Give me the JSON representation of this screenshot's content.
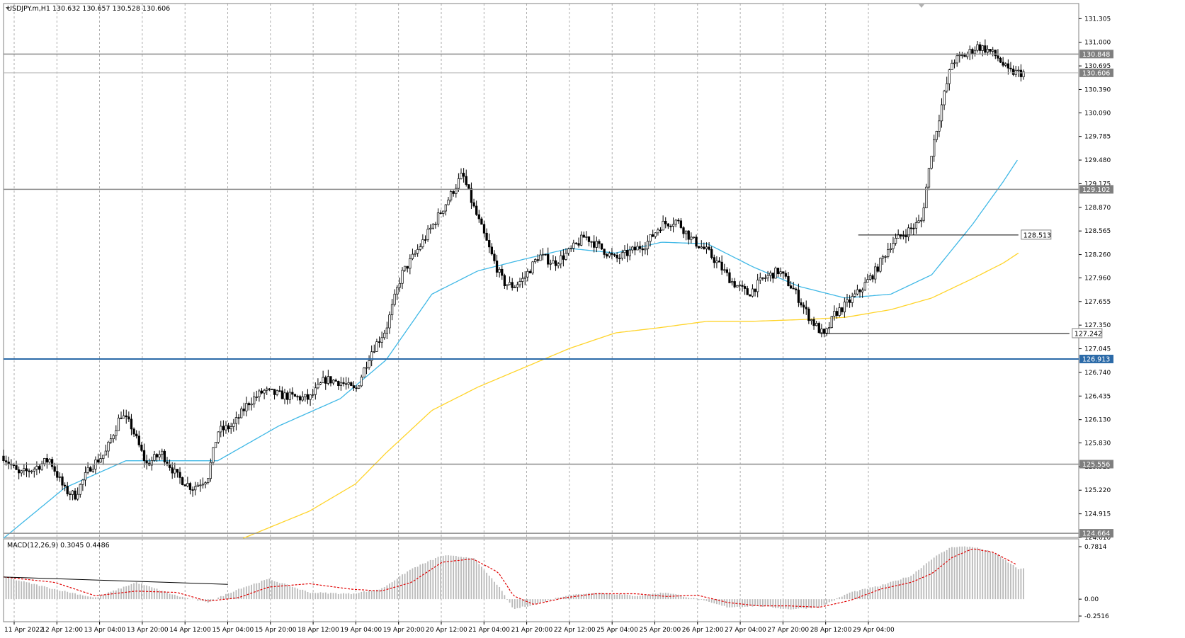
{
  "window": {
    "header_text": "USDJPY.m,H1  130.632 130.657 130.528 130.606",
    "macd_label": "MACD(12,26,9) 0.3045 0.4486"
  },
  "colors": {
    "bull_body": "#ffffff",
    "bear_body": "#000000",
    "candle_edge": "#000000",
    "ma_fast": "#3fb8e6",
    "ma_slow": "#ffd42a",
    "hline_gray": "#8c8c8c",
    "hline_blue": "#2b6aa8",
    "macd_hist": "#b9b9b9",
    "macd_signal": "#e00000",
    "grid": "#9a9a9a"
  },
  "chart_data": {
    "type": "candlestick",
    "symbol": "USDJPY.m",
    "timeframe": "H1",
    "last_ohlc": {
      "open": 130.632,
      "high": 130.657,
      "low": 130.528,
      "close": 130.606
    },
    "price_range": [
      124.61,
      131.5
    ],
    "price_ticks": [
      "131.305",
      "131.000",
      "130.695",
      "130.390",
      "130.090",
      "129.785",
      "129.480",
      "129.175",
      "128.870",
      "128.565",
      "128.260",
      "127.960",
      "127.655",
      "127.350",
      "127.045",
      "126.740",
      "126.435",
      "126.130",
      "125.830",
      "125.525",
      "125.220",
      "124.915",
      "124.610"
    ],
    "time_labels": [
      "11 Apr 2022",
      "12 Apr 12:00",
      "13 Apr 04:00",
      "13 Apr 20:00",
      "14 Apr 12:00",
      "15 Apr 04:00",
      "15 Apr 20:00",
      "18 Apr 12:00",
      "19 Apr 04:00",
      "19 Apr 20:00",
      "20 Apr 12:00",
      "21 Apr 04:00",
      "21 Apr 20:00",
      "22 Apr 12:00",
      "25 Apr 04:00",
      "25 Apr 20:00",
      "26 Apr 12:00",
      "27 Apr 04:00",
      "27 Apr 20:00",
      "28 Apr 12:00",
      "29 Apr 04:00"
    ],
    "horizontal_levels": [
      {
        "price": 130.848,
        "label": "130.848",
        "style": "gray"
      },
      {
        "price": 130.606,
        "label": "130.606",
        "style": "current"
      },
      {
        "price": 129.102,
        "label": "129.102",
        "style": "gray"
      },
      {
        "price": 126.913,
        "label": "126.913",
        "style": "blue"
      },
      {
        "price": 125.556,
        "label": "125.556",
        "style": "gray"
      },
      {
        "price": 124.664,
        "label": "124.664",
        "style": "gray"
      }
    ],
    "annotations": [
      {
        "label": "128.513",
        "price": 128.513,
        "from_bar": 0.838,
        "to_bar": 0.995
      },
      {
        "label": "127.242",
        "price": 127.242,
        "from_bar": 0.8,
        "to_bar": 1.045
      }
    ],
    "price_path": [
      [
        0.0,
        125.66
      ],
      [
        0.015,
        125.42
      ],
      [
        0.03,
        125.5
      ],
      [
        0.045,
        125.62
      ],
      [
        0.06,
        125.22
      ],
      [
        0.07,
        125.15
      ],
      [
        0.085,
        125.52
      ],
      [
        0.1,
        125.7
      ],
      [
        0.115,
        126.2
      ],
      [
        0.125,
        126.05
      ],
      [
        0.14,
        125.55
      ],
      [
        0.155,
        125.7
      ],
      [
        0.17,
        125.4
      ],
      [
        0.185,
        125.25
      ],
      [
        0.2,
        125.38
      ],
      [
        0.21,
        125.98
      ],
      [
        0.225,
        126.05
      ],
      [
        0.24,
        126.35
      ],
      [
        0.255,
        126.5
      ],
      [
        0.27,
        126.45
      ],
      [
        0.285,
        126.42
      ],
      [
        0.3,
        126.4
      ],
      [
        0.315,
        126.65
      ],
      [
        0.33,
        126.62
      ],
      [
        0.345,
        126.5
      ],
      [
        0.36,
        127.0
      ],
      [
        0.375,
        127.3
      ],
      [
        0.39,
        128.0
      ],
      [
        0.405,
        128.3
      ],
      [
        0.42,
        128.62
      ],
      [
        0.435,
        128.95
      ],
      [
        0.45,
        129.3
      ],
      [
        0.46,
        128.9
      ],
      [
        0.47,
        128.55
      ],
      [
        0.48,
        128.2
      ],
      [
        0.49,
        127.9
      ],
      [
        0.5,
        127.85
      ],
      [
        0.51,
        127.95
      ],
      [
        0.525,
        128.25
      ],
      [
        0.54,
        128.15
      ],
      [
        0.555,
        128.3
      ],
      [
        0.57,
        128.5
      ],
      [
        0.585,
        128.35
      ],
      [
        0.6,
        128.2
      ],
      [
        0.615,
        128.3
      ],
      [
        0.63,
        128.4
      ],
      [
        0.645,
        128.65
      ],
      [
        0.66,
        128.7
      ],
      [
        0.675,
        128.45
      ],
      [
        0.69,
        128.3
      ],
      [
        0.7,
        128.15
      ],
      [
        0.715,
        127.9
      ],
      [
        0.73,
        127.75
      ],
      [
        0.745,
        127.95
      ],
      [
        0.76,
        128.05
      ],
      [
        0.775,
        127.8
      ],
      [
        0.79,
        127.45
      ],
      [
        0.805,
        127.2
      ],
      [
        0.815,
        127.5
      ],
      [
        0.825,
        127.6
      ],
      [
        0.84,
        127.8
      ],
      [
        0.855,
        128.05
      ],
      [
        0.87,
        128.4
      ],
      [
        0.885,
        128.55
      ],
      [
        0.9,
        128.7
      ],
      [
        0.91,
        129.6
      ],
      [
        0.92,
        130.2
      ],
      [
        0.93,
        130.75
      ],
      [
        0.945,
        130.85
      ],
      [
        0.955,
        130.95
      ],
      [
        0.965,
        130.9
      ],
      [
        0.975,
        130.8
      ],
      [
        0.985,
        130.62
      ],
      [
        0.995,
        130.606
      ]
    ],
    "ma_fast_path": [
      [
        0.0,
        124.6
      ],
      [
        0.06,
        125.25
      ],
      [
        0.12,
        125.6
      ],
      [
        0.18,
        125.6
      ],
      [
        0.21,
        125.6
      ],
      [
        0.27,
        126.05
      ],
      [
        0.33,
        126.4
      ],
      [
        0.375,
        126.9
      ],
      [
        0.42,
        127.75
      ],
      [
        0.465,
        128.05
      ],
      [
        0.51,
        128.2
      ],
      [
        0.555,
        128.34
      ],
      [
        0.6,
        128.28
      ],
      [
        0.645,
        128.42
      ],
      [
        0.69,
        128.4
      ],
      [
        0.735,
        128.1
      ],
      [
        0.78,
        127.85
      ],
      [
        0.825,
        127.7
      ],
      [
        0.87,
        127.75
      ],
      [
        0.91,
        128.0
      ],
      [
        0.95,
        128.65
      ],
      [
        0.98,
        129.2
      ],
      [
        0.995,
        129.5
      ]
    ],
    "ma_slow_path": [
      [
        0.235,
        124.6
      ],
      [
        0.3,
        124.95
      ],
      [
        0.345,
        125.3
      ],
      [
        0.375,
        125.7
      ],
      [
        0.42,
        126.25
      ],
      [
        0.465,
        126.55
      ],
      [
        0.51,
        126.8
      ],
      [
        0.555,
        127.05
      ],
      [
        0.6,
        127.25
      ],
      [
        0.645,
        127.32
      ],
      [
        0.69,
        127.4
      ],
      [
        0.735,
        127.4
      ],
      [
        0.78,
        127.42
      ],
      [
        0.825,
        127.45
      ],
      [
        0.87,
        127.55
      ],
      [
        0.91,
        127.7
      ],
      [
        0.95,
        127.95
      ],
      [
        0.98,
        128.15
      ],
      [
        0.995,
        128.28
      ]
    ],
    "macd": {
      "range": [
        -0.2516,
        0.7814
      ],
      "tick_labels": [
        "0.7814",
        "0.00",
        "-0.2516"
      ],
      "hist_path": [
        [
          0.0,
          0.33
        ],
        [
          0.05,
          0.15
        ],
        [
          0.09,
          0.02
        ],
        [
          0.13,
          0.25
        ],
        [
          0.17,
          0.05
        ],
        [
          0.2,
          -0.05
        ],
        [
          0.23,
          0.15
        ],
        [
          0.26,
          0.3
        ],
        [
          0.3,
          0.1
        ],
        [
          0.34,
          0.08
        ],
        [
          0.37,
          0.15
        ],
        [
          0.4,
          0.45
        ],
        [
          0.43,
          0.65
        ],
        [
          0.46,
          0.62
        ],
        [
          0.485,
          0.2
        ],
        [
          0.5,
          -0.15
        ],
        [
          0.52,
          -0.08
        ],
        [
          0.55,
          0.05
        ],
        [
          0.58,
          0.1
        ],
        [
          0.62,
          0.05
        ],
        [
          0.65,
          0.1
        ],
        [
          0.68,
          0.0
        ],
        [
          0.71,
          -0.12
        ],
        [
          0.74,
          -0.1
        ],
        [
          0.77,
          -0.15
        ],
        [
          0.8,
          -0.12
        ],
        [
          0.83,
          0.1
        ],
        [
          0.86,
          0.2
        ],
        [
          0.89,
          0.35
        ],
        [
          0.91,
          0.6
        ],
        [
          0.93,
          0.78
        ],
        [
          0.95,
          0.78
        ],
        [
          0.97,
          0.7
        ],
        [
          0.995,
          0.45
        ]
      ],
      "signal_path": [
        [
          0.0,
          0.33
        ],
        [
          0.05,
          0.25
        ],
        [
          0.09,
          0.05
        ],
        [
          0.13,
          0.12
        ],
        [
          0.17,
          0.1
        ],
        [
          0.2,
          -0.03
        ],
        [
          0.23,
          0.02
        ],
        [
          0.26,
          0.18
        ],
        [
          0.3,
          0.23
        ],
        [
          0.34,
          0.15
        ],
        [
          0.37,
          0.12
        ],
        [
          0.4,
          0.25
        ],
        [
          0.43,
          0.55
        ],
        [
          0.46,
          0.6
        ],
        [
          0.485,
          0.4
        ],
        [
          0.5,
          0.05
        ],
        [
          0.52,
          -0.08
        ],
        [
          0.55,
          0.02
        ],
        [
          0.58,
          0.08
        ],
        [
          0.62,
          0.08
        ],
        [
          0.65,
          0.04
        ],
        [
          0.68,
          0.06
        ],
        [
          0.71,
          -0.05
        ],
        [
          0.74,
          -0.1
        ],
        [
          0.77,
          -0.1
        ],
        [
          0.8,
          -0.12
        ],
        [
          0.83,
          -0.02
        ],
        [
          0.86,
          0.15
        ],
        [
          0.89,
          0.25
        ],
        [
          0.91,
          0.38
        ],
        [
          0.93,
          0.62
        ],
        [
          0.95,
          0.75
        ],
        [
          0.97,
          0.7
        ],
        [
          0.995,
          0.5
        ]
      ],
      "trendline": {
        "from": [
          0.0,
          0.33
        ],
        "to": [
          0.22,
          0.22
        ]
      }
    }
  }
}
